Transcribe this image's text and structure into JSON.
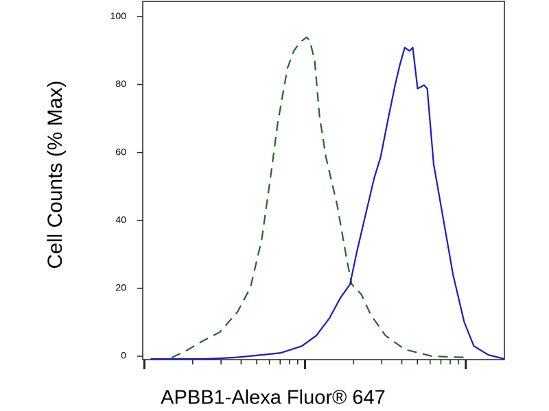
{
  "chart_data": {
    "type": "line",
    "x_label": "APBB1-Alexa Fluor® 647",
    "y_label": "Cell Counts (% Max)",
    "log_x": true,
    "xlim": [
      -0.01,
      2.24
    ],
    "xticks": [
      0,
      1,
      2
    ],
    "xminorticks": [
      0.301,
      0.477,
      0.602,
      0.699,
      0.778,
      0.845,
      0.903,
      0.954,
      1.301,
      1.477,
      1.602,
      1.699,
      1.778,
      1.845,
      1.903,
      1.954
    ],
    "ylim": [
      -1,
      104.5
    ],
    "yticks": [
      0,
      20,
      40,
      60,
      80,
      100
    ],
    "series": [
      {
        "color": "#1e6b1e",
        "dashed": true,
        "x": [
          0.17,
          0.26,
          0.36,
          0.47,
          0.58,
          0.66,
          0.73,
          0.79,
          0.83,
          0.89,
          0.93,
          0.96,
          0.98,
          1.01,
          1.03,
          1.06,
          1.09,
          1.13,
          1.2,
          1.26,
          1.29,
          1.35,
          1.41,
          1.5,
          1.62,
          1.79,
          2.01
        ],
        "values": [
          -0.4,
          1.6,
          4.4,
          7.1,
          13.1,
          20.2,
          34.3,
          54.5,
          68.7,
          84.8,
          89.9,
          91.9,
          92.9,
          93.9,
          92.9,
          86.9,
          70.7,
          58.6,
          44.4,
          28.3,
          21.2,
          18.2,
          12.1,
          6.1,
          2.0,
          0,
          -0.4
        ]
      },
      {
        "color": "#1a1ac8",
        "dashed": false,
        "x": [
          0.04,
          0.38,
          0.56,
          0.73,
          0.85,
          0.98,
          1.07,
          1.15,
          1.22,
          1.28,
          1.32,
          1.37,
          1.43,
          1.47,
          1.52,
          1.56,
          1.59,
          1.62,
          1.65,
          1.67,
          1.7,
          1.74,
          1.76,
          1.8,
          1.86,
          1.92,
          1.99,
          2.05,
          2.14,
          2.24
        ],
        "values": [
          -0.8,
          -0.8,
          -0.4,
          0.4,
          1.0,
          3.0,
          6.1,
          11.1,
          17.2,
          21.2,
          30.3,
          40.4,
          52.5,
          58.6,
          70.7,
          79.8,
          85.9,
          90.9,
          89.9,
          90.9,
          78.8,
          79.8,
          78.8,
          56.6,
          40.4,
          24.2,
          10.1,
          3.0,
          0.4,
          -0.8
        ]
      }
    ]
  }
}
